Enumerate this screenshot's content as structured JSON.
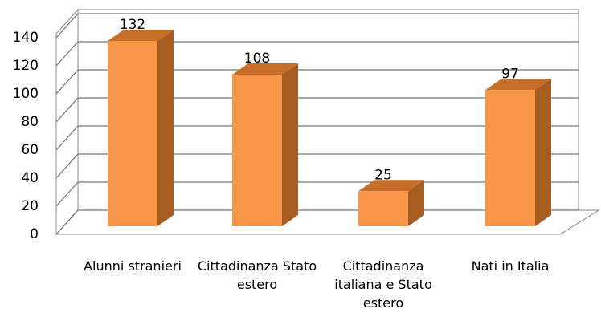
{
  "chart_data": {
    "type": "bar3d",
    "categories": [
      "Alunni stranieri",
      "Cittadinanza Stato estero",
      "Cittadinanza italiana e Stato estero",
      "Nati in Italia"
    ],
    "values": [
      132,
      108,
      25,
      97
    ],
    "color": "#f79646",
    "ylim": [
      0,
      140
    ],
    "yticks": [
      0,
      20,
      40,
      60,
      80,
      100,
      120,
      140
    ],
    "grid": true
  }
}
